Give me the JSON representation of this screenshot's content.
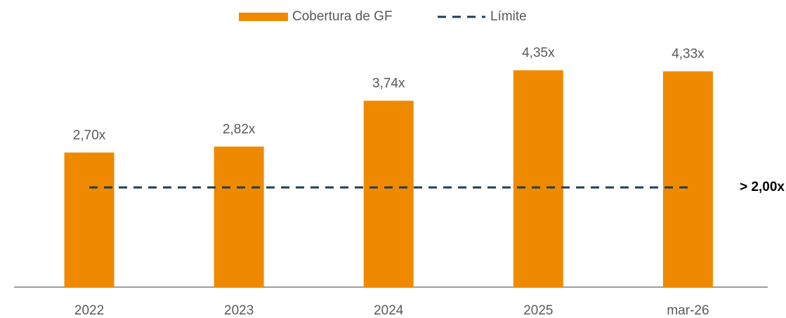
{
  "chart_data": {
    "type": "bar",
    "categories": [
      "2022",
      "2023",
      "2024",
      "2025",
      "mar-26"
    ],
    "series": [
      {
        "name": "Cobertura de GF",
        "type": "bar",
        "color": "#ef8a00",
        "values": [
          2.7,
          2.82,
          3.74,
          4.35,
          4.33
        ],
        "value_labels": [
          "2,70x",
          "2,82x",
          "3,74x",
          "4,35x",
          "4,33x"
        ]
      },
      {
        "name": "Límite",
        "type": "line",
        "dashed": true,
        "color": "#1d3e55",
        "values": [
          2,
          2,
          2,
          2,
          2
        ]
      }
    ],
    "annotations": [
      {
        "text": "> 2,00x",
        "value": 2
      }
    ],
    "ylim": [
      0,
      5
    ],
    "legend": "top"
  }
}
